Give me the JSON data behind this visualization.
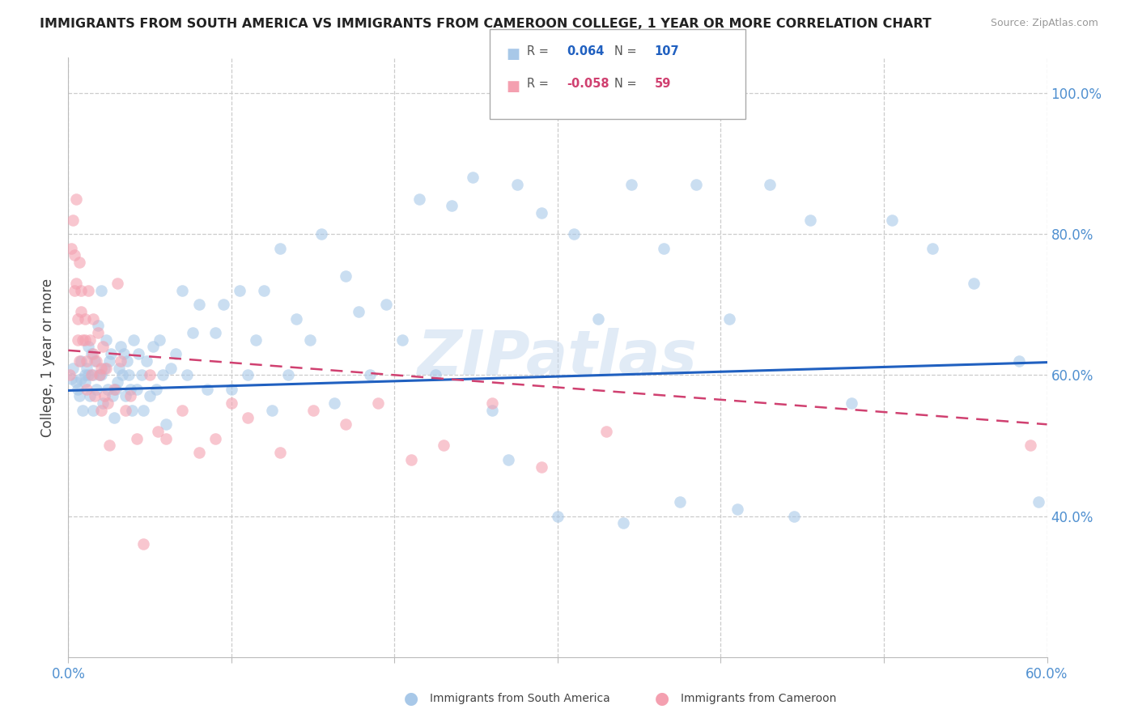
{
  "title": "IMMIGRANTS FROM SOUTH AMERICA VS IMMIGRANTS FROM CAMEROON COLLEGE, 1 YEAR OR MORE CORRELATION CHART",
  "source": "Source: ZipAtlas.com",
  "ylabel": "College, 1 year or more",
  "xmin": 0.0,
  "xmax": 0.6,
  "ymin": 0.2,
  "ymax": 1.05,
  "yticks": [
    0.4,
    0.6,
    0.8,
    1.0
  ],
  "xticks": [
    0.0,
    0.1,
    0.2,
    0.3,
    0.4,
    0.5,
    0.6
  ],
  "ytick_labels": [
    "40.0%",
    "60.0%",
    "80.0%",
    "100.0%"
  ],
  "blue_R": 0.064,
  "blue_N": 107,
  "pink_R": -0.058,
  "pink_N": 59,
  "blue_color": "#a8c8e8",
  "pink_color": "#f4a0b0",
  "blue_line_color": "#2060c0",
  "pink_line_color": "#d04070",
  "watermark": "ZIPatlas",
  "background_color": "#ffffff",
  "grid_color": "#cccccc",
  "axis_label_color": "#5090d0",
  "blue_trend_x0": 0.0,
  "blue_trend_x1": 0.6,
  "blue_trend_y0": 0.578,
  "blue_trend_y1": 0.618,
  "pink_trend_x0": 0.0,
  "pink_trend_x1": 0.6,
  "pink_trend_y0": 0.635,
  "pink_trend_y1": 0.53,
  "blue_scatter_x": [
    0.002,
    0.003,
    0.005,
    0.006,
    0.007,
    0.008,
    0.008,
    0.009,
    0.01,
    0.01,
    0.011,
    0.012,
    0.012,
    0.013,
    0.014,
    0.015,
    0.015,
    0.016,
    0.017,
    0.018,
    0.019,
    0.02,
    0.02,
    0.021,
    0.022,
    0.023,
    0.024,
    0.025,
    0.026,
    0.027,
    0.028,
    0.029,
    0.03,
    0.031,
    0.032,
    0.033,
    0.034,
    0.035,
    0.036,
    0.037,
    0.038,
    0.039,
    0.04,
    0.042,
    0.043,
    0.045,
    0.046,
    0.048,
    0.05,
    0.052,
    0.054,
    0.056,
    0.058,
    0.06,
    0.063,
    0.066,
    0.07,
    0.073,
    0.076,
    0.08,
    0.085,
    0.09,
    0.095,
    0.1,
    0.105,
    0.11,
    0.115,
    0.12,
    0.125,
    0.13,
    0.135,
    0.14,
    0.148,
    0.155,
    0.163,
    0.17,
    0.178,
    0.185,
    0.195,
    0.205,
    0.215,
    0.225,
    0.235,
    0.248,
    0.26,
    0.275,
    0.29,
    0.31,
    0.325,
    0.345,
    0.365,
    0.385,
    0.405,
    0.43,
    0.455,
    0.48,
    0.505,
    0.53,
    0.555,
    0.583,
    0.27,
    0.3,
    0.34,
    0.375,
    0.41,
    0.445,
    0.595
  ],
  "blue_scatter_y": [
    0.595,
    0.61,
    0.59,
    0.58,
    0.57,
    0.62,
    0.595,
    0.55,
    0.6,
    0.59,
    0.61,
    0.64,
    0.6,
    0.57,
    0.63,
    0.6,
    0.55,
    0.62,
    0.58,
    0.67,
    0.6,
    0.72,
    0.6,
    0.56,
    0.61,
    0.65,
    0.58,
    0.62,
    0.63,
    0.57,
    0.54,
    0.58,
    0.59,
    0.61,
    0.64,
    0.6,
    0.63,
    0.57,
    0.62,
    0.6,
    0.58,
    0.55,
    0.65,
    0.58,
    0.63,
    0.6,
    0.55,
    0.62,
    0.57,
    0.64,
    0.58,
    0.65,
    0.6,
    0.53,
    0.61,
    0.63,
    0.72,
    0.6,
    0.66,
    0.7,
    0.58,
    0.66,
    0.7,
    0.58,
    0.72,
    0.6,
    0.65,
    0.72,
    0.55,
    0.78,
    0.6,
    0.68,
    0.65,
    0.8,
    0.56,
    0.74,
    0.69,
    0.6,
    0.7,
    0.65,
    0.85,
    0.6,
    0.84,
    0.88,
    0.55,
    0.87,
    0.83,
    0.8,
    0.68,
    0.87,
    0.78,
    0.87,
    0.68,
    0.87,
    0.82,
    0.56,
    0.82,
    0.78,
    0.73,
    0.62,
    0.48,
    0.4,
    0.39,
    0.42,
    0.41,
    0.4,
    0.42
  ],
  "pink_scatter_x": [
    0.001,
    0.002,
    0.003,
    0.004,
    0.004,
    0.005,
    0.005,
    0.006,
    0.006,
    0.007,
    0.007,
    0.008,
    0.008,
    0.009,
    0.01,
    0.01,
    0.011,
    0.011,
    0.012,
    0.013,
    0.014,
    0.015,
    0.015,
    0.016,
    0.017,
    0.018,
    0.019,
    0.02,
    0.02,
    0.021,
    0.022,
    0.023,
    0.024,
    0.025,
    0.028,
    0.03,
    0.032,
    0.035,
    0.038,
    0.042,
    0.046,
    0.05,
    0.055,
    0.06,
    0.07,
    0.08,
    0.09,
    0.1,
    0.11,
    0.13,
    0.15,
    0.17,
    0.19,
    0.21,
    0.23,
    0.26,
    0.29,
    0.33,
    0.59
  ],
  "pink_scatter_y": [
    0.6,
    0.78,
    0.82,
    0.77,
    0.72,
    0.85,
    0.73,
    0.68,
    0.65,
    0.62,
    0.76,
    0.72,
    0.69,
    0.65,
    0.68,
    0.65,
    0.62,
    0.58,
    0.72,
    0.65,
    0.6,
    0.68,
    0.63,
    0.57,
    0.62,
    0.66,
    0.6,
    0.55,
    0.61,
    0.64,
    0.57,
    0.61,
    0.56,
    0.5,
    0.58,
    0.73,
    0.62,
    0.55,
    0.57,
    0.51,
    0.36,
    0.6,
    0.52,
    0.51,
    0.55,
    0.49,
    0.51,
    0.56,
    0.54,
    0.49,
    0.55,
    0.53,
    0.56,
    0.48,
    0.5,
    0.56,
    0.47,
    0.52,
    0.5
  ]
}
